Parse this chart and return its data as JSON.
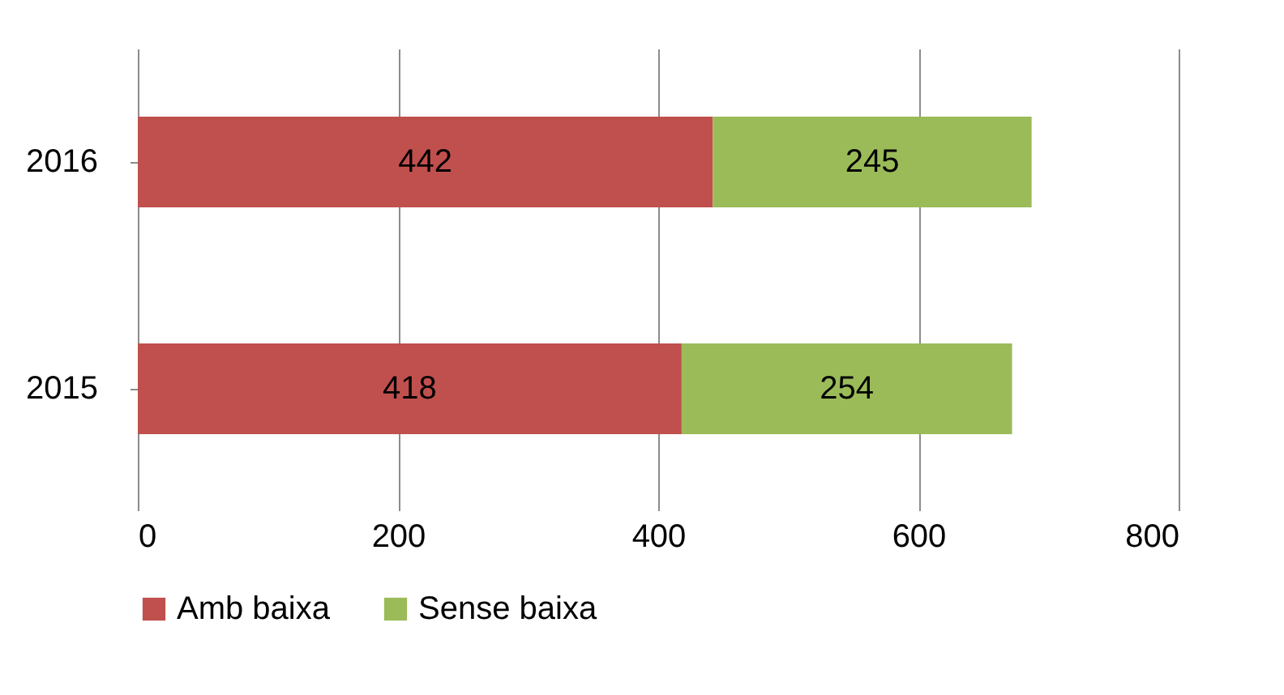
{
  "chart_data": {
    "type": "bar",
    "orientation": "horizontal",
    "stacked": true,
    "categories": [
      "2016",
      "2015"
    ],
    "series": [
      {
        "name": "Amb baixa",
        "color": "#c0504d",
        "values": [
          442,
          418
        ]
      },
      {
        "name": "Sense baixa",
        "color": "#9bbb59",
        "values": [
          245,
          254
        ]
      }
    ],
    "xlim": [
      0,
      800
    ],
    "xticks": [
      0,
      200,
      400,
      600,
      800
    ],
    "grid": "x",
    "legend": "bottom",
    "data_labels": true
  }
}
